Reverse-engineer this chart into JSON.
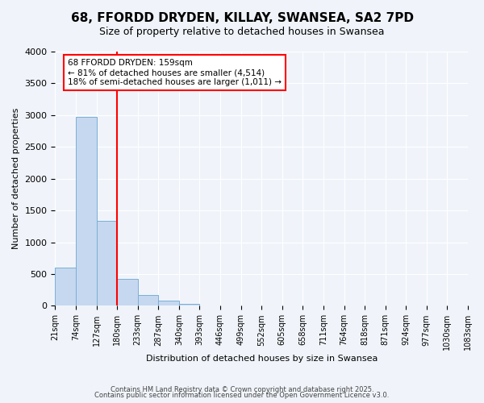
{
  "title": "68, FFORDD DRYDEN, KILLAY, SWANSEA, SA2 7PD",
  "subtitle": "Size of property relative to detached houses in Swansea",
  "xlabel": "Distribution of detached houses by size in Swansea",
  "ylabel": "Number of detached properties",
  "bar_values": [
    600,
    2970,
    1340,
    430,
    175,
    80,
    30,
    0,
    0,
    0,
    0,
    0,
    0,
    0,
    0,
    0,
    0,
    0,
    0,
    0
  ],
  "bin_labels": [
    "21sqm",
    "74sqm",
    "127sqm",
    "180sqm",
    "233sqm",
    "287sqm",
    "340sqm",
    "393sqm",
    "446sqm",
    "499sqm",
    "552sqm",
    "605sqm",
    "658sqm",
    "711sqm",
    "764sqm",
    "818sqm",
    "871sqm",
    "924sqm",
    "977sqm",
    "1030sqm",
    "1083sqm"
  ],
  "bar_color": "#c5d8f0",
  "bar_edge_color": "#7bafd4",
  "ylim": [
    0,
    4000
  ],
  "yticks": [
    0,
    500,
    1000,
    1500,
    2000,
    2500,
    3000,
    3500,
    4000
  ],
  "vline_x": 3,
  "vline_color": "red",
  "annotation_title": "68 FFORDD DRYDEN: 159sqm",
  "annotation_line1": "← 81% of detached houses are smaller (4,514)",
  "annotation_line2": "18% of semi-detached houses are larger (1,011) →",
  "annotation_box_color": "white",
  "annotation_border_color": "red",
  "footnote1": "Contains HM Land Registry data © Crown copyright and database right 2025.",
  "footnote2": "Contains public sector information licensed under the Open Government Licence v3.0.",
  "background_color": "#f0f4fa",
  "grid_color": "white"
}
